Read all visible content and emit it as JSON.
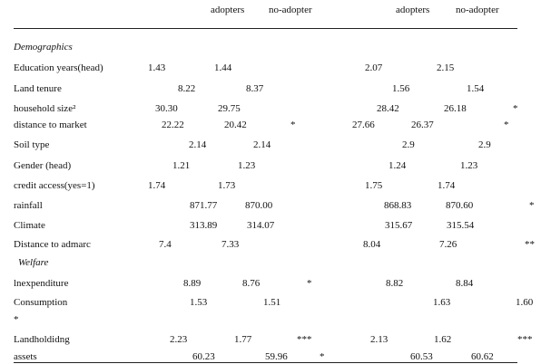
{
  "header": {
    "columns": [
      "adopters",
      "no-adopter",
      "adopters",
      "no-adopter"
    ]
  },
  "rows": [
    {
      "label": "Demographics",
      "cells": []
    },
    {
      "label": "Education years(head)",
      "cells": [
        "1.43",
        "1.44",
        "2.07",
        "2.15"
      ]
    },
    {
      "label": "Land tenure",
      "cells": [
        "8.22",
        "8.37",
        "1.56",
        "1.54"
      ]
    },
    {
      "label": "household size²",
      "cells": [
        "30.30",
        "29.75",
        "28.42",
        "26.18",
        "*"
      ]
    },
    {
      "label": "distance to market",
      "cells": [
        "22.22",
        "20.42",
        "*",
        "27.66",
        "26.37",
        "*"
      ]
    },
    {
      "label": "Soil type",
      "cells": [
        "2.14",
        "2.14",
        "2.9",
        "2.9"
      ]
    },
    {
      "label": "Gender (head)",
      "cells": [
        "1.21",
        "1.23",
        "1.24",
        "1.23"
      ]
    },
    {
      "label": "credit access(yes=1)",
      "cells": [
        "1.74",
        "1.73",
        "1.75",
        "1.74"
      ]
    },
    {
      "label": "rainfall",
      "cells": [
        "871.77",
        "870.00",
        "868.83",
        "870.60",
        "*"
      ]
    },
    {
      "label": "Climate",
      "cells": [
        "313.89",
        "314.07",
        "315.67",
        "315.54"
      ]
    },
    {
      "label": "Distance to admarc",
      "cells": [
        "7.4",
        "7.33",
        "8.04",
        "7.26",
        "**"
      ]
    },
    {
      "label": "Welfare",
      "cells": []
    },
    {
      "label": "lnexpenditure",
      "cells": [
        "8.89",
        "8.76",
        "*",
        "8.82",
        "8.84"
      ]
    },
    {
      "label": "Consumption",
      "cells": [
        "1.53",
        "1.51",
        "1.63",
        "1.60"
      ]
    },
    {
      "label": "*",
      "cells": []
    },
    {
      "label": "Landholdidng",
      "cells": [
        "2.23",
        "1.77",
        "***",
        "2.13",
        "1.62",
        "***"
      ]
    },
    {
      "label": "assets",
      "cells": [
        "60.23",
        "59.96",
        "*",
        "60.53",
        "60.62"
      ]
    }
  ]
}
